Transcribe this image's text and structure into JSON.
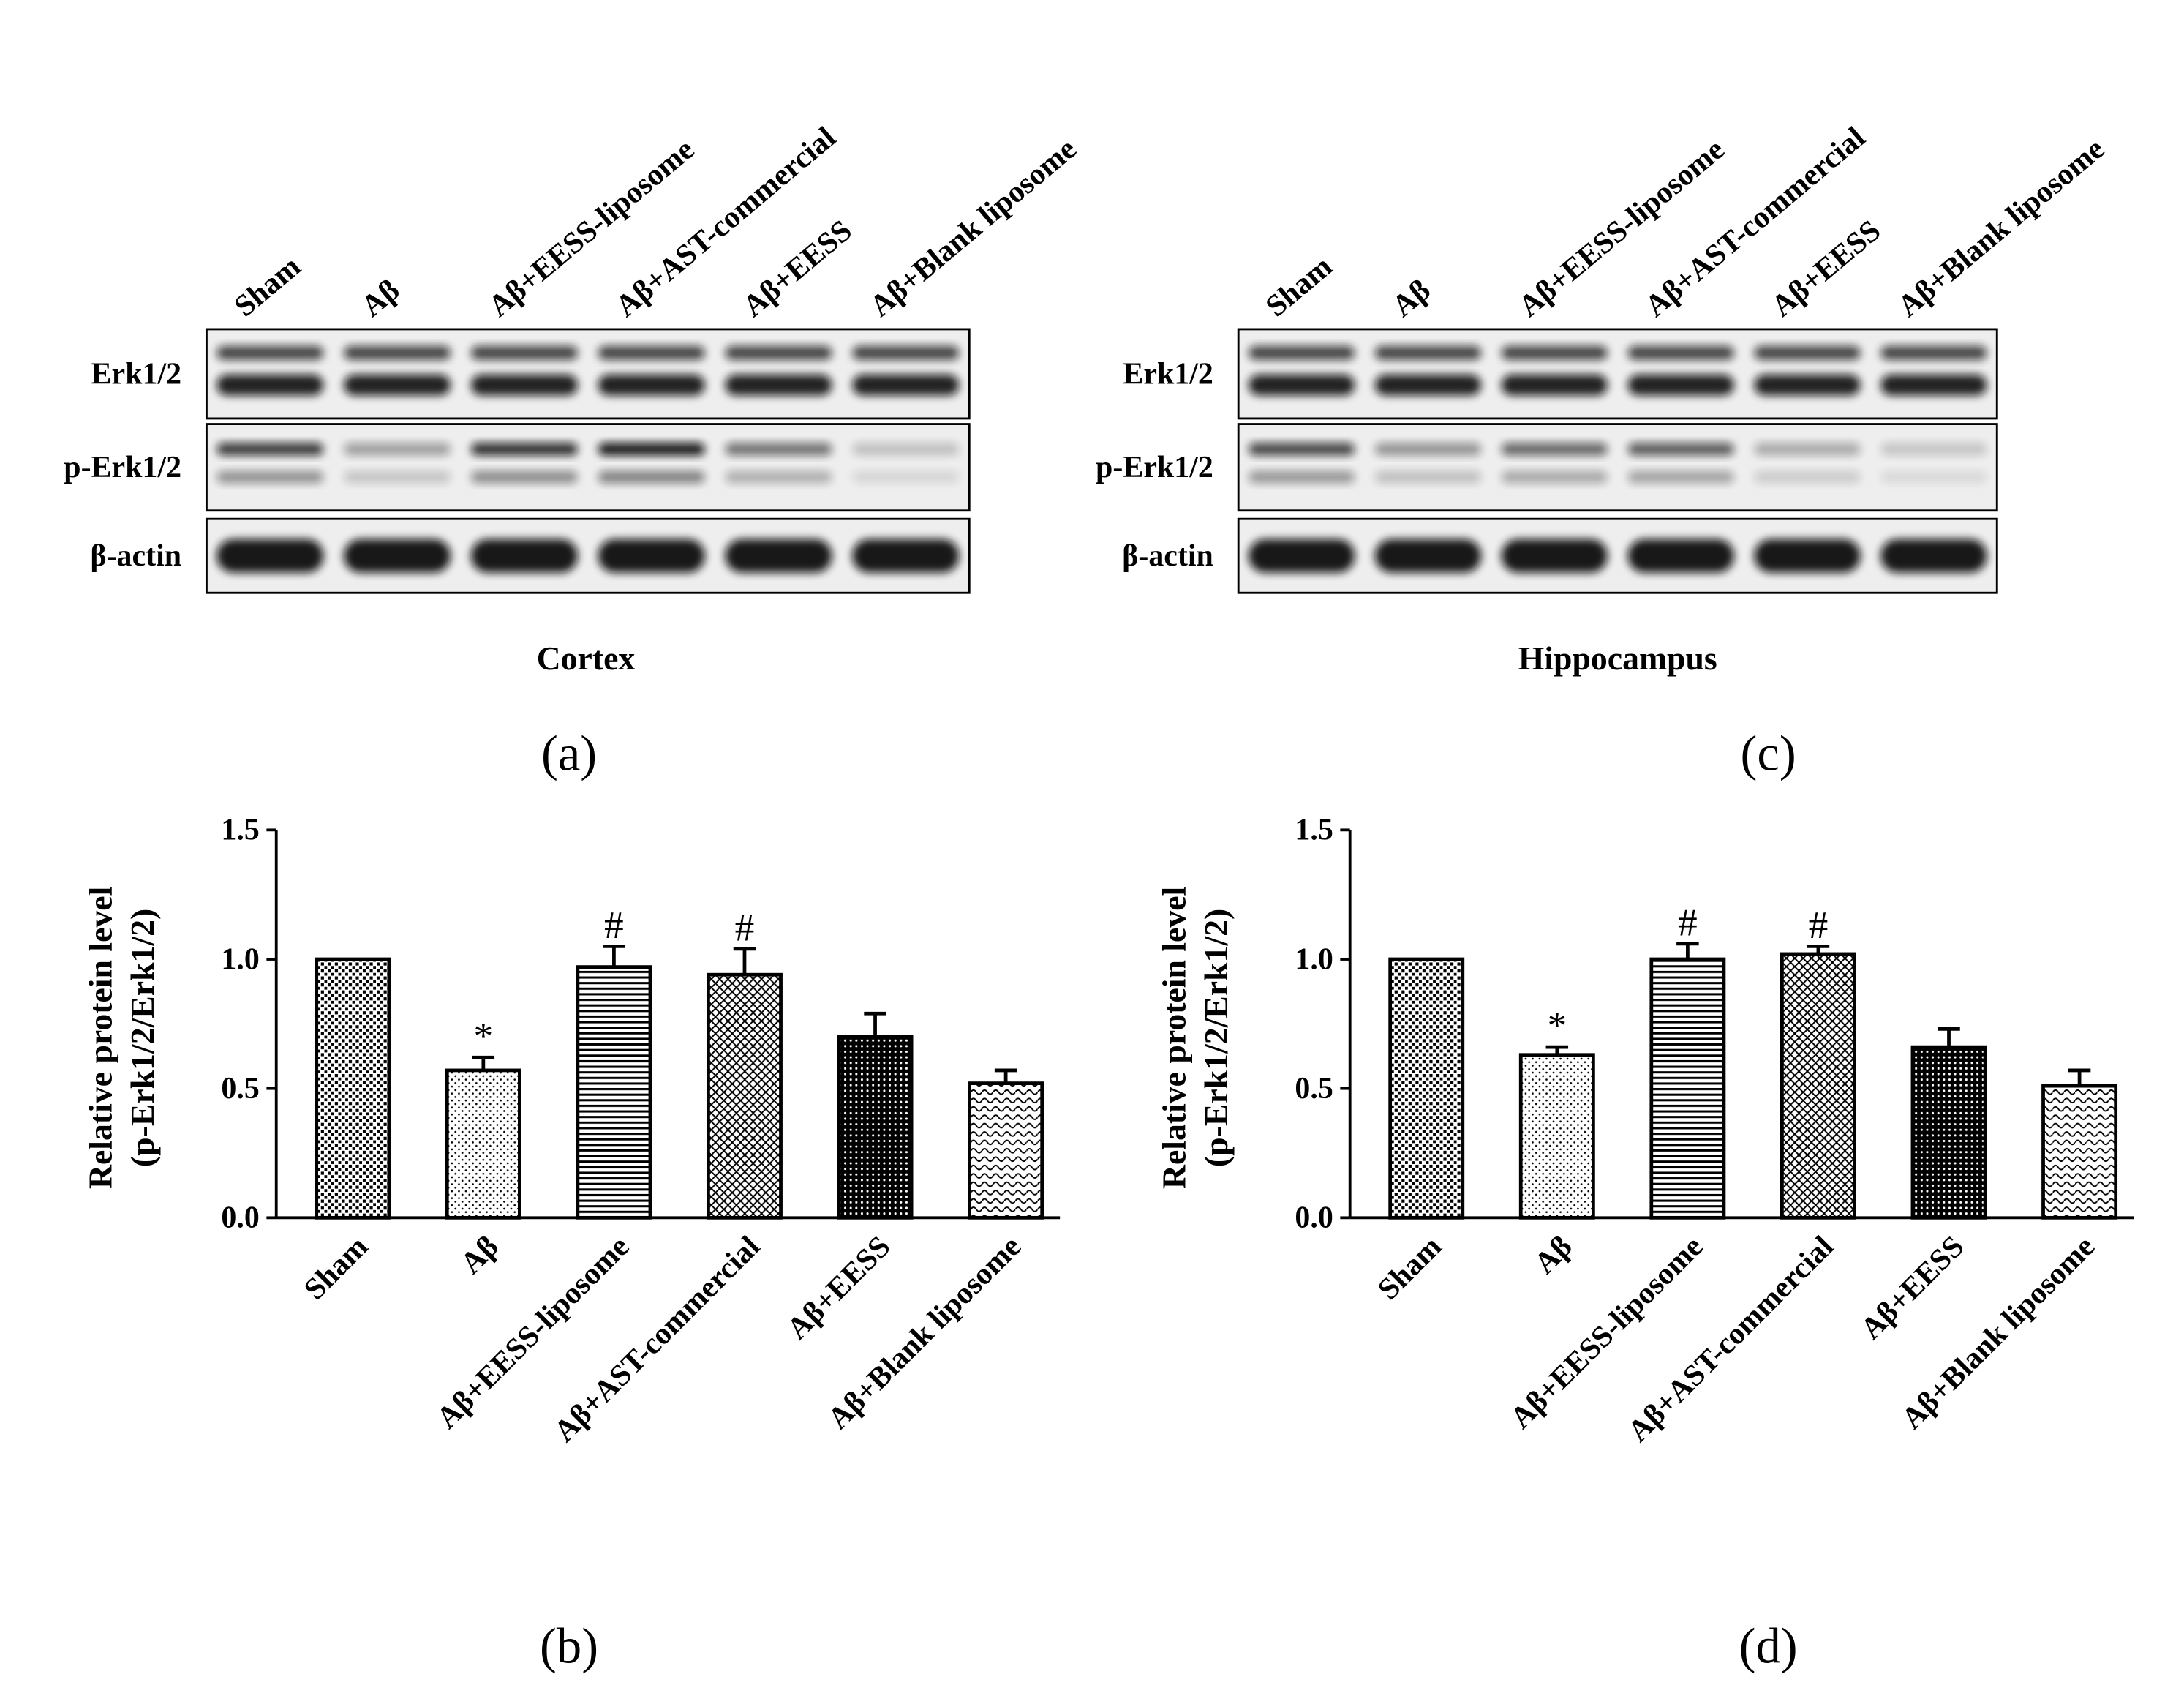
{
  "blots": [
    {
      "lanes": [
        "Sham",
        "Aβ",
        "Aβ+EESS-liposome",
        "Aβ+AST-commercial",
        "Aβ+EESS",
        "Aβ+Blank liposome"
      ],
      "rows": [
        "Erk1/2",
        "p-Erk1/2",
        "β-actin"
      ],
      "caption": "Cortex",
      "panel": "(a)"
    },
    {
      "lanes": [
        "Sham",
        "Aβ",
        "Aβ+EESS-liposome",
        "Aβ+AST-commercial",
        "Aβ+EESS",
        "Aβ+Blank liposome"
      ],
      "rows": [
        "Erk1/2",
        "p-Erk1/2",
        "β-actin"
      ],
      "caption": "Hippocampus",
      "panel": "(c)"
    }
  ],
  "chart_data": [
    {
      "type": "bar",
      "panel": "(b)",
      "y_label": [
        "Relative protein level",
        "(p-Erk1/2/Erk1/2)"
      ],
      "categories": [
        "Sham",
        "Aβ",
        "Aβ+EESS-liposome",
        "Aβ+AST-commercial",
        "Aβ+EESS",
        "Aβ+Blank liposome"
      ],
      "values": [
        1.0,
        0.57,
        0.97,
        0.94,
        0.7,
        0.52
      ],
      "errors": [
        0,
        0.05,
        0.08,
        0.1,
        0.09,
        0.05
      ],
      "markers": [
        null,
        "*",
        "#",
        "#",
        null,
        null
      ],
      "color": "#000000",
      "ylim": [
        0,
        1.5
      ],
      "yticks": [
        {
          "value": 0,
          "label": "0.0"
        },
        0.5,
        {
          "value": 1,
          "label": "1.0"
        },
        1.5
      ]
    },
    {
      "type": "bar",
      "panel": "(d)",
      "y_label": [
        "Relative protein level",
        "(p-Erk1/2/Erk1/2)"
      ],
      "categories": [
        "Sham",
        "Aβ",
        "Aβ+EESS-liposome",
        "Aβ+AST-commercial",
        "Aβ+EESS",
        "Aβ+Blank liposome"
      ],
      "values": [
        1.0,
        0.63,
        1.0,
        1.02,
        0.66,
        0.51
      ],
      "errors": [
        0,
        0.03,
        0.06,
        0.03,
        0.07,
        0.06
      ],
      "markers": [
        null,
        "*",
        "#",
        "#",
        null,
        null
      ],
      "color": "#000000",
      "ylim": [
        0,
        1.5
      ],
      "yticks": [
        {
          "value": 0,
          "label": "0.0"
        },
        0.5,
        {
          "value": 1,
          "label": "1.0"
        },
        1.5
      ]
    }
  ]
}
